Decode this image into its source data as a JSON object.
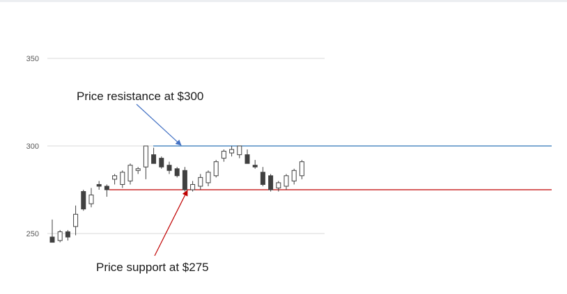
{
  "chart_data": {
    "type": "candlestick",
    "title": "",
    "xlabel": "",
    "ylabel": "",
    "ylim": [
      240,
      360
    ],
    "yticks": [
      250,
      300,
      350
    ],
    "grid": true,
    "candles": [
      {
        "o": 248,
        "h": 258,
        "l": 245,
        "c": 245
      },
      {
        "o": 246,
        "h": 252,
        "l": 245,
        "c": 251
      },
      {
        "o": 251,
        "h": 252,
        "l": 246,
        "c": 248
      },
      {
        "o": 254,
        "h": 266,
        "l": 249,
        "c": 261
      },
      {
        "o": 274,
        "h": 275,
        "l": 263,
        "c": 264
      },
      {
        "o": 267,
        "h": 276,
        "l": 265,
        "c": 272
      },
      {
        "o": 278,
        "h": 280,
        "l": 275,
        "c": 277
      },
      {
        "o": 277,
        "h": 278,
        "l": 271,
        "c": 275
      },
      {
        "o": 281,
        "h": 284,
        "l": 278,
        "c": 283
      },
      {
        "o": 278,
        "h": 286,
        "l": 276,
        "c": 285
      },
      {
        "o": 280,
        "h": 290,
        "l": 278,
        "c": 289
      },
      {
        "o": 286,
        "h": 288,
        "l": 284,
        "c": 287
      },
      {
        "o": 288,
        "h": 300,
        "l": 281,
        "c": 300
      },
      {
        "o": 295,
        "h": 299,
        "l": 290,
        "c": 290
      },
      {
        "o": 293,
        "h": 294,
        "l": 287,
        "c": 288
      },
      {
        "o": 289,
        "h": 291,
        "l": 284,
        "c": 286
      },
      {
        "o": 287,
        "h": 288,
        "l": 282,
        "c": 283
      },
      {
        "o": 286,
        "h": 288,
        "l": 274,
        "c": 275
      },
      {
        "o": 275,
        "h": 280,
        "l": 274,
        "c": 278
      },
      {
        "o": 277,
        "h": 284,
        "l": 275,
        "c": 282
      },
      {
        "o": 279,
        "h": 286,
        "l": 277,
        "c": 285
      },
      {
        "o": 283,
        "h": 292,
        "l": 282,
        "c": 291
      },
      {
        "o": 293,
        "h": 298,
        "l": 291,
        "c": 297
      },
      {
        "o": 296,
        "h": 300,
        "l": 294,
        "c": 298
      },
      {
        "o": 295,
        "h": 300,
        "l": 293,
        "c": 300
      },
      {
        "o": 295,
        "h": 298,
        "l": 290,
        "c": 290
      },
      {
        "o": 289,
        "h": 292,
        "l": 287,
        "c": 288
      },
      {
        "o": 285,
        "h": 288,
        "l": 277,
        "c": 278
      },
      {
        "o": 283,
        "h": 284,
        "l": 274,
        "c": 275
      },
      {
        "o": 276,
        "h": 280,
        "l": 274,
        "c": 279
      },
      {
        "o": 277,
        "h": 284,
        "l": 275,
        "c": 283
      },
      {
        "o": 280,
        "h": 287,
        "l": 278,
        "c": 286
      },
      {
        "o": 283,
        "h": 292,
        "l": 281,
        "c": 291
      }
    ],
    "levels": [
      {
        "value": 300,
        "color": "#2e75b6"
      },
      {
        "value": 275,
        "color": "#c00000"
      }
    ],
    "annotations": [
      {
        "text": "Price resistance at $300",
        "target": 300,
        "arrow_color": "#4472c4"
      },
      {
        "text": "Price support at $275",
        "target": 275,
        "arrow_color": "#c00000"
      }
    ],
    "colors": {
      "up_fill": "#ffffff",
      "down_fill": "#404040",
      "stroke": "#404040",
      "grid": "#d9d9d9"
    }
  }
}
